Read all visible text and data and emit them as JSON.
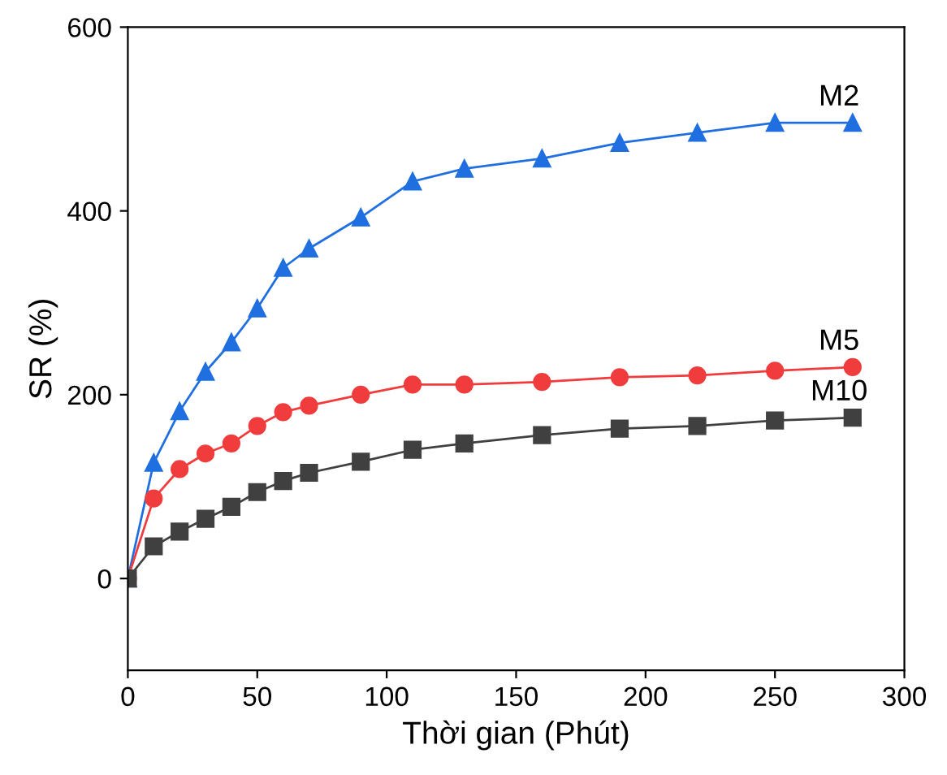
{
  "chart_data": {
    "type": "line",
    "xlabel": "Thời gian (Phút)",
    "ylabel": "SR (%)",
    "x": [
      0,
      10,
      20,
      30,
      40,
      50,
      60,
      70,
      90,
      110,
      130,
      160,
      190,
      220,
      250,
      280
    ],
    "series": [
      {
        "name": "M2",
        "color": "#1f6fe0",
        "marker": "triangle",
        "values": [
          0,
          126,
          182,
          225,
          257,
          294,
          338,
          359,
          393,
          432,
          446,
          457,
          474,
          485,
          496,
          496
        ]
      },
      {
        "name": "M5",
        "color": "#f03c3c",
        "marker": "circle",
        "values": [
          0,
          87,
          119,
          136,
          147,
          166,
          181,
          188,
          200,
          211,
          211,
          214,
          219,
          221,
          226,
          230
        ]
      },
      {
        "name": "M10",
        "color": "#404040",
        "marker": "square",
        "values": [
          0,
          35,
          51,
          65,
          78,
          94,
          106,
          115,
          127,
          140,
          147,
          156,
          163,
          166,
          172,
          175
        ]
      }
    ],
    "xlim": [
      0,
      300
    ],
    "xticks": [
      0,
      50,
      100,
      150,
      200,
      250,
      300
    ],
    "ylim": [
      -100,
      600
    ],
    "yticks": [
      0,
      200,
      400,
      600
    ],
    "grid": false,
    "legend": false
  }
}
